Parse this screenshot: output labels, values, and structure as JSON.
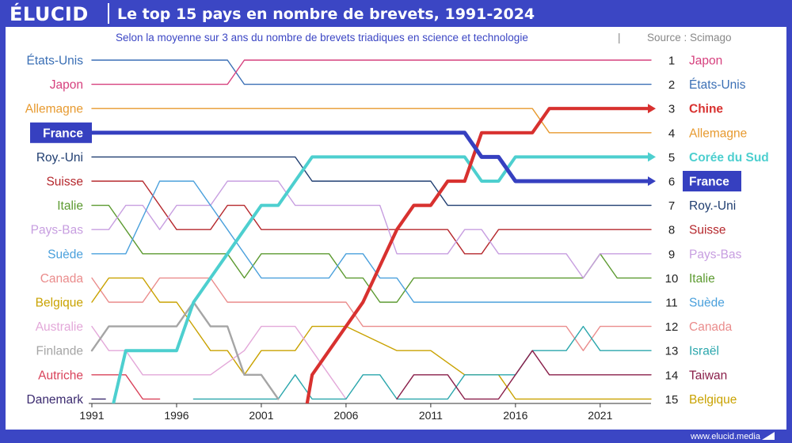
{
  "header": {
    "brand": "ÉLUCID",
    "title": "Le top 15 pays en nombre de brevets, 1991-2024"
  },
  "subtitle": "Selon la moyenne sur 3 ans du nombre de brevets triadiques en science et technologie",
  "source": "Source : Scimago",
  "footer": {
    "url": "www.elucid.media"
  },
  "colors": {
    "background": "#3b46c4",
    "highlight": "#3640c0"
  },
  "chart_data": {
    "type": "line",
    "subtype": "bump-chart",
    "x_start": 1991,
    "x_end": 2024,
    "xticks": [
      1991,
      1996,
      2001,
      2006,
      2011,
      2016,
      2021
    ],
    "y_axis": "rank",
    "ylim": [
      1,
      15
    ],
    "start_labels": [
      "États-Unis",
      "Japon",
      "Allemagne",
      "France",
      "Roy.-Uni",
      "Suisse",
      "Italie",
      "Pays-Bas",
      "Suède",
      "Canada",
      "Belgique",
      "Australie",
      "Finlande",
      "Autriche",
      "Danemark"
    ],
    "end_ranks": [
      "1",
      "2",
      "3",
      "4",
      "5",
      "6",
      "7",
      "8",
      "9",
      "10",
      "11",
      "12",
      "13",
      "14",
      "15"
    ],
    "end_labels": [
      "Japon",
      "États-Unis",
      "Chine",
      "Allemagne",
      "Corée du Sud",
      "France",
      "Roy.-Uni",
      "Suisse",
      "Pays-Bas",
      "Italie",
      "Suède",
      "Canada",
      "Israël",
      "Taiwan",
      "Belgique"
    ],
    "highlighted": "France",
    "series": [
      {
        "name": "États-Unis",
        "color": "#3a6fb5",
        "width": 1.4,
        "points": [
          [
            1991,
            1
          ],
          [
            1999,
            1
          ],
          [
            2000,
            2
          ],
          [
            2024,
            2
          ]
        ]
      },
      {
        "name": "Japon",
        "color": "#d6417e",
        "width": 1.4,
        "points": [
          [
            1991,
            2
          ],
          [
            1999,
            2
          ],
          [
            2000,
            1
          ],
          [
            2024,
            1
          ]
        ]
      },
      {
        "name": "Allemagne",
        "color": "#e79a2f",
        "width": 1.4,
        "points": [
          [
            1991,
            3
          ],
          [
            2017,
            3
          ],
          [
            2018,
            4
          ],
          [
            2024,
            4
          ]
        ]
      },
      {
        "name": "France",
        "color": "#3640c0",
        "width": 5,
        "arrow": true,
        "points": [
          [
            1991,
            4
          ],
          [
            2013,
            4
          ],
          [
            2014,
            5
          ],
          [
            2015,
            5
          ],
          [
            2016,
            6
          ],
          [
            2024,
            6
          ]
        ]
      },
      {
        "name": "Roy.-Uni",
        "color": "#1f3d70",
        "width": 1.4,
        "points": [
          [
            1991,
            5
          ],
          [
            2003,
            5
          ],
          [
            2004,
            6
          ],
          [
            2011,
            6
          ],
          [
            2012,
            7
          ],
          [
            2024,
            7
          ]
        ]
      },
      {
        "name": "Suisse",
        "color": "#b5282d",
        "width": 1.4,
        "points": [
          [
            1991,
            6
          ],
          [
            1994,
            6
          ],
          [
            1996,
            8
          ],
          [
            1998,
            8
          ],
          [
            1999,
            7
          ],
          [
            2000,
            7
          ],
          [
            2001,
            8
          ],
          [
            2012,
            8
          ],
          [
            2013,
            9
          ],
          [
            2014,
            9
          ],
          [
            2015,
            8
          ],
          [
            2024,
            8
          ]
        ]
      },
      {
        "name": "Italie",
        "color": "#5c9a30",
        "width": 1.4,
        "points": [
          [
            1991,
            7
          ],
          [
            1992,
            7
          ],
          [
            1994,
            9
          ],
          [
            1999,
            9
          ],
          [
            2000,
            10
          ],
          [
            2001,
            9
          ],
          [
            2005,
            9
          ],
          [
            2006,
            10
          ],
          [
            2007,
            10
          ],
          [
            2008,
            11
          ],
          [
            2009,
            11
          ],
          [
            2010,
            10
          ],
          [
            2020,
            10
          ],
          [
            2021,
            9
          ],
          [
            2022,
            10
          ],
          [
            2024,
            10
          ]
        ]
      },
      {
        "name": "Pays-Bas",
        "color": "#c79ee0",
        "width": 1.4,
        "points": [
          [
            1991,
            8
          ],
          [
            1992,
            8
          ],
          [
            1993,
            7
          ],
          [
            1994,
            7
          ],
          [
            1995,
            8
          ],
          [
            1996,
            7
          ],
          [
            1998,
            7
          ],
          [
            1999,
            6
          ],
          [
            2002,
            6
          ],
          [
            2003,
            7
          ],
          [
            2008,
            7
          ],
          [
            2009,
            9
          ],
          [
            2012,
            9
          ],
          [
            2013,
            8
          ],
          [
            2014,
            8
          ],
          [
            2015,
            9
          ],
          [
            2019,
            9
          ],
          [
            2020,
            10
          ],
          [
            2021,
            9
          ],
          [
            2024,
            9
          ]
        ]
      },
      {
        "name": "Suède",
        "color": "#4aa0dc",
        "width": 1.4,
        "points": [
          [
            1991,
            9
          ],
          [
            1993,
            9
          ],
          [
            1995,
            6
          ],
          [
            1997,
            6
          ],
          [
            1999,
            8
          ],
          [
            2001,
            10
          ],
          [
            2005,
            10
          ],
          [
            2006,
            9
          ],
          [
            2007,
            9
          ],
          [
            2008,
            10
          ],
          [
            2009,
            10
          ],
          [
            2010,
            11
          ],
          [
            2024,
            11
          ]
        ]
      },
      {
        "name": "Canada",
        "color": "#ea8c8c",
        "width": 1.4,
        "points": [
          [
            1991,
            10
          ],
          [
            1992,
            11
          ],
          [
            1994,
            11
          ],
          [
            1995,
            10
          ],
          [
            1998,
            10
          ],
          [
            1999,
            11
          ],
          [
            2006,
            11
          ],
          [
            2007,
            12
          ],
          [
            2019,
            12
          ],
          [
            2020,
            13
          ],
          [
            2021,
            12
          ],
          [
            2024,
            12
          ]
        ]
      },
      {
        "name": "Belgique",
        "color": "#c9a200",
        "width": 1.4,
        "points": [
          [
            1991,
            11
          ],
          [
            1992,
            10
          ],
          [
            1994,
            10
          ],
          [
            1995,
            11
          ],
          [
            1996,
            11
          ],
          [
            1997,
            12
          ],
          [
            1998,
            13
          ],
          [
            1999,
            13
          ],
          [
            2000,
            14
          ],
          [
            2001,
            13
          ],
          [
            2003,
            13
          ],
          [
            2004,
            12
          ],
          [
            2006,
            12
          ],
          [
            2009,
            13
          ],
          [
            2011,
            13
          ],
          [
            2013,
            14
          ],
          [
            2015,
            14
          ],
          [
            2016,
            15
          ],
          [
            2024,
            15
          ]
        ]
      },
      {
        "name": "Australie",
        "color": "#e3a8d9",
        "width": 1.4,
        "points": [
          [
            1991,
            12
          ],
          [
            1992,
            13
          ],
          [
            1993,
            13
          ],
          [
            1994,
            14
          ],
          [
            1998,
            14
          ],
          [
            2000,
            13
          ],
          [
            2001,
            12
          ],
          [
            2003,
            12
          ],
          [
            2004,
            13
          ],
          [
            2005,
            14
          ],
          [
            2006,
            15
          ]
        ]
      },
      {
        "name": "Finlande",
        "color": "#a5a5a5",
        "width": 2.4,
        "points": [
          [
            1991,
            13
          ],
          [
            1992,
            12
          ],
          [
            1996,
            12
          ],
          [
            1997,
            11
          ],
          [
            1998,
            12
          ],
          [
            1999,
            12
          ],
          [
            2000,
            14
          ],
          [
            2001,
            14
          ],
          [
            2002,
            15
          ]
        ]
      },
      {
        "name": "Autriche",
        "color": "#d9425a",
        "width": 1.4,
        "points": [
          [
            1991,
            14
          ],
          [
            1993,
            14
          ],
          [
            1994,
            15
          ],
          [
            1995,
            15
          ]
        ]
      },
      {
        "name": "Danemark",
        "color": "#3b2a6f",
        "width": 1.4,
        "points": [
          [
            1991,
            15
          ],
          [
            1991.8,
            15
          ]
        ]
      },
      {
        "name": "Chine",
        "color": "#d8312f",
        "width": 4.2,
        "arrow": true,
        "points": [
          [
            2003.5,
            16
          ],
          [
            2004,
            14
          ],
          [
            2006,
            12
          ],
          [
            2007,
            11
          ],
          [
            2009,
            8
          ],
          [
            2010,
            7
          ],
          [
            2011,
            7
          ],
          [
            2012,
            6
          ],
          [
            2013,
            6
          ],
          [
            2014,
            4
          ],
          [
            2017,
            4
          ],
          [
            2018,
            3
          ],
          [
            2024,
            3
          ]
        ]
      },
      {
        "name": "Corée du Sud",
        "color": "#4dcfcf",
        "width": 4,
        "arrow": true,
        "points": [
          [
            1992,
            16
          ],
          [
            1993,
            13
          ],
          [
            1996,
            13
          ],
          [
            1997,
            11
          ],
          [
            1998,
            10
          ],
          [
            1999,
            9
          ],
          [
            2000,
            8
          ],
          [
            2001,
            7
          ],
          [
            2002,
            7
          ],
          [
            2003,
            6
          ],
          [
            2004,
            5
          ],
          [
            2013,
            5
          ],
          [
            2014,
            6
          ],
          [
            2015,
            6
          ],
          [
            2016,
            5
          ],
          [
            2024,
            5
          ]
        ]
      },
      {
        "name": "Israël",
        "color": "#2aa6ac",
        "width": 1.4,
        "points": [
          [
            1997,
            15
          ],
          [
            2002,
            15
          ],
          [
            2003,
            14
          ],
          [
            2004,
            15
          ],
          [
            2006,
            15
          ],
          [
            2007,
            14
          ],
          [
            2008,
            14
          ],
          [
            2009,
            15
          ],
          [
            2012,
            15
          ],
          [
            2013,
            14
          ],
          [
            2015,
            14
          ],
          [
            2016,
            14
          ],
          [
            2017,
            13
          ],
          [
            2019,
            13
          ],
          [
            2020,
            12
          ],
          [
            2021,
            13
          ],
          [
            2024,
            13
          ]
        ]
      },
      {
        "name": "Taiwan",
        "color": "#8a1f4a",
        "width": 1.4,
        "points": [
          [
            2009,
            15
          ],
          [
            2010,
            14
          ],
          [
            2012,
            14
          ],
          [
            2013,
            15
          ],
          [
            2015,
            15
          ],
          [
            2016,
            14
          ],
          [
            2017,
            13
          ],
          [
            2018,
            14
          ],
          [
            2024,
            14
          ]
        ]
      }
    ]
  }
}
